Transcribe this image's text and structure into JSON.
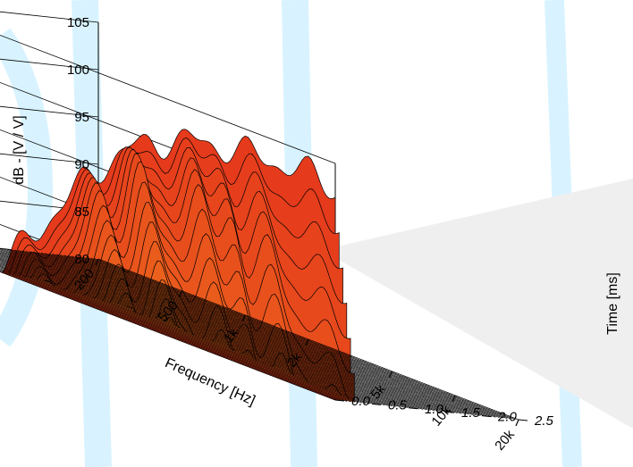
{
  "chart_data": {
    "type": "waterfall",
    "title": "",
    "ylabel": "dB - [V / V]",
    "xlabel": "Frequency [Hz]",
    "zlabel": "Time [ms]",
    "ylim": [
      80,
      105
    ],
    "y_ticks": [
      80,
      85,
      90,
      95,
      100,
      105
    ],
    "x_scale": "log",
    "xlim": [
      200,
      20000
    ],
    "x_ticks": [
      {
        "value": 200,
        "label": "200"
      },
      {
        "value": 500,
        "label": "500"
      },
      {
        "value": 1000,
        "label": "1k"
      },
      {
        "value": 2000,
        "label": "2k"
      },
      {
        "value": 5000,
        "label": "5k"
      },
      {
        "value": 10000,
        "label": "10k"
      },
      {
        "value": 20000,
        "label": "20k"
      }
    ],
    "zlim": [
      0,
      2.5
    ],
    "z_ticks": [
      {
        "value": 0.0,
        "label": "0.0"
      },
      {
        "value": 0.5,
        "label": "0.5"
      },
      {
        "value": 1.0,
        "label": "1.0"
      },
      {
        "value": 1.5,
        "label": "1.5"
      },
      {
        "value": 2.0,
        "label": "2.0"
      },
      {
        "value": 2.5,
        "label": "2.5"
      }
    ],
    "colors": {
      "high": "#e53a1c",
      "mid": "#f08a1c",
      "low": "#f3ee22",
      "background_watermark": "#cfefff"
    },
    "grid": true
  }
}
